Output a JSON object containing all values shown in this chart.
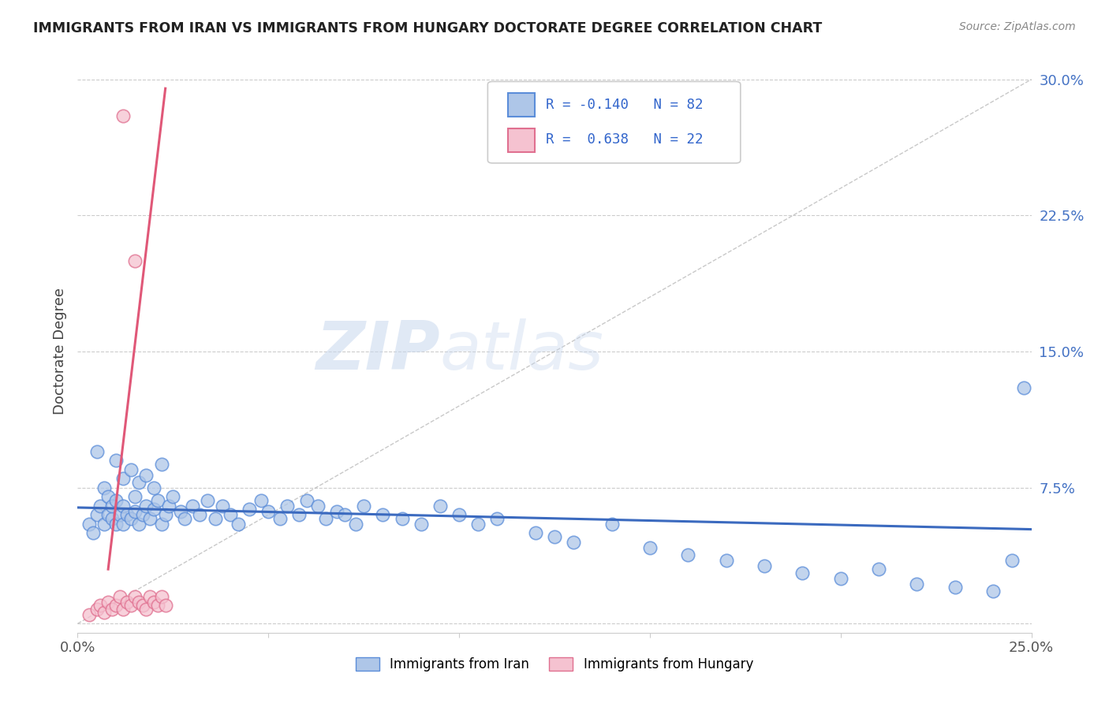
{
  "title": "IMMIGRANTS FROM IRAN VS IMMIGRANTS FROM HUNGARY DOCTORATE DEGREE CORRELATION CHART",
  "source_text": "Source: ZipAtlas.com",
  "ylabel_label": "Doctorate Degree",
  "watermark_zip": "ZIP",
  "watermark_atlas": "atlas",
  "iran_R": -0.14,
  "iran_N": 82,
  "hungary_R": 0.638,
  "hungary_N": 22,
  "iran_color": "#aec6e8",
  "iran_edge_color": "#5b8dd9",
  "iran_line_color": "#3b6abf",
  "hungary_color": "#f5c2d0",
  "hungary_edge_color": "#e07090",
  "hungary_line_color": "#e05878",
  "x_min": 0.0,
  "x_max": 0.25,
  "y_min": -0.005,
  "y_max": 0.305,
  "x_ticks": [
    0.0,
    0.05,
    0.1,
    0.15,
    0.2,
    0.25
  ],
  "x_tick_labels": [
    "0.0%",
    "",
    "",
    "",
    "",
    "25.0%"
  ],
  "y_ticks": [
    0.0,
    0.075,
    0.15,
    0.225,
    0.3
  ],
  "y_tick_labels": [
    "",
    "7.5%",
    "15.0%",
    "22.5%",
    "30.0%"
  ],
  "iran_scatter_x": [
    0.003,
    0.004,
    0.005,
    0.006,
    0.007,
    0.007,
    0.008,
    0.008,
    0.009,
    0.009,
    0.01,
    0.01,
    0.011,
    0.012,
    0.012,
    0.013,
    0.014,
    0.015,
    0.015,
    0.016,
    0.017,
    0.018,
    0.019,
    0.02,
    0.021,
    0.022,
    0.023,
    0.024,
    0.025,
    0.027,
    0.028,
    0.03,
    0.032,
    0.034,
    0.036,
    0.038,
    0.04,
    0.042,
    0.045,
    0.048,
    0.05,
    0.053,
    0.055,
    0.058,
    0.06,
    0.063,
    0.065,
    0.068,
    0.07,
    0.073,
    0.075,
    0.08,
    0.085,
    0.09,
    0.095,
    0.1,
    0.105,
    0.11,
    0.12,
    0.125,
    0.13,
    0.14,
    0.15,
    0.16,
    0.17,
    0.18,
    0.19,
    0.2,
    0.21,
    0.22,
    0.23,
    0.24,
    0.245,
    0.248,
    0.005,
    0.01,
    0.012,
    0.014,
    0.016,
    0.018,
    0.02,
    0.022
  ],
  "iran_scatter_y": [
    0.055,
    0.05,
    0.06,
    0.065,
    0.055,
    0.075,
    0.06,
    0.07,
    0.058,
    0.065,
    0.055,
    0.068,
    0.06,
    0.055,
    0.065,
    0.06,
    0.058,
    0.062,
    0.07,
    0.055,
    0.06,
    0.065,
    0.058,
    0.063,
    0.068,
    0.055,
    0.06,
    0.065,
    0.07,
    0.062,
    0.058,
    0.065,
    0.06,
    0.068,
    0.058,
    0.065,
    0.06,
    0.055,
    0.063,
    0.068,
    0.062,
    0.058,
    0.065,
    0.06,
    0.068,
    0.065,
    0.058,
    0.062,
    0.06,
    0.055,
    0.065,
    0.06,
    0.058,
    0.055,
    0.065,
    0.06,
    0.055,
    0.058,
    0.05,
    0.048,
    0.045,
    0.055,
    0.042,
    0.038,
    0.035,
    0.032,
    0.028,
    0.025,
    0.03,
    0.022,
    0.02,
    0.018,
    0.035,
    0.13,
    0.095,
    0.09,
    0.08,
    0.085,
    0.078,
    0.082,
    0.075,
    0.088
  ],
  "hungary_scatter_x": [
    0.003,
    0.005,
    0.006,
    0.007,
    0.008,
    0.009,
    0.01,
    0.011,
    0.012,
    0.013,
    0.014,
    0.015,
    0.016,
    0.017,
    0.018,
    0.019,
    0.02,
    0.021,
    0.022,
    0.023,
    0.012,
    0.015
  ],
  "hungary_scatter_y": [
    0.005,
    0.008,
    0.01,
    0.006,
    0.012,
    0.008,
    0.01,
    0.015,
    0.008,
    0.012,
    0.01,
    0.015,
    0.012,
    0.01,
    0.008,
    0.015,
    0.012,
    0.01,
    0.015,
    0.01,
    0.28,
    0.2
  ],
  "iran_trend_x": [
    0.0,
    0.25
  ],
  "iran_trend_y": [
    0.064,
    0.052
  ],
  "hungary_trend_x": [
    0.008,
    0.023
  ],
  "hungary_trend_y": [
    0.03,
    0.295
  ],
  "ref_line_x": [
    0.0,
    0.25
  ],
  "ref_line_y": [
    0.0,
    0.3
  ]
}
